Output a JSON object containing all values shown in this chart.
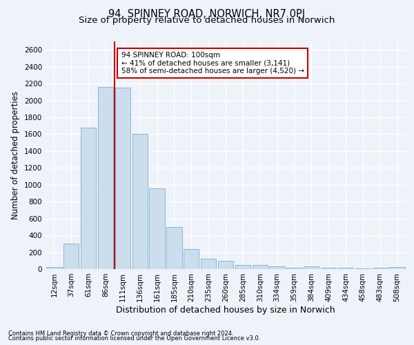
{
  "title": "94, SPINNEY ROAD, NORWICH, NR7 0PJ",
  "subtitle": "Size of property relative to detached houses in Norwich",
  "xlabel": "Distribution of detached houses by size in Norwich",
  "ylabel": "Number of detached properties",
  "bar_color": "#ccdded",
  "bar_edge_color": "#7aaed0",
  "vline_color": "#cc0000",
  "annotation_text": "94 SPINNEY ROAD: 100sqm\n← 41% of detached houses are smaller (3,141)\n58% of semi-detached houses are larger (4,520) →",
  "annotation_box_color": "#ffffff",
  "annotation_box_edge": "#cc0000",
  "categories": [
    "12sqm",
    "37sqm",
    "61sqm",
    "86sqm",
    "111sqm",
    "136sqm",
    "161sqm",
    "185sqm",
    "210sqm",
    "235sqm",
    "260sqm",
    "285sqm",
    "310sqm",
    "334sqm",
    "359sqm",
    "384sqm",
    "409sqm",
    "434sqm",
    "458sqm",
    "483sqm",
    "508sqm"
  ],
  "values": [
    25,
    300,
    1680,
    2160,
    2150,
    1600,
    960,
    500,
    240,
    120,
    100,
    50,
    50,
    30,
    15,
    30,
    15,
    15,
    10,
    15,
    25
  ],
  "ylim": [
    0,
    2700
  ],
  "yticks": [
    0,
    200,
    400,
    600,
    800,
    1000,
    1200,
    1400,
    1600,
    1800,
    2000,
    2200,
    2400,
    2600
  ],
  "vline_pos": 3.54,
  "footnote1": "Contains HM Land Registry data © Crown copyright and database right 2024.",
  "footnote2": "Contains public sector information licensed under the Open Government Licence v3.0.",
  "background_color": "#eef2f9",
  "grid_color": "#ffffff",
  "title_fontsize": 10.5,
  "subtitle_fontsize": 9.5,
  "xlabel_fontsize": 9,
  "ylabel_fontsize": 8.5,
  "tick_fontsize": 7.5,
  "annot_fontsize": 7.5,
  "footnote_fontsize": 6
}
